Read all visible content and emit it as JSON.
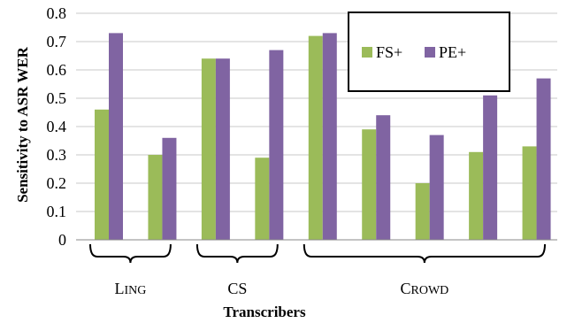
{
  "chart_data": {
    "type": "bar",
    "title": "",
    "xlabel": "Transcribers",
    "ylabel": "Sensitivity to ASR WER",
    "ylim": [
      0,
      0.8
    ],
    "yticks": [
      "0",
      "0.1",
      "0.2",
      "0.3",
      "0.4",
      "0.5",
      "0.6",
      "0.7",
      "0.8"
    ],
    "grid": true,
    "legend_position": "top-right",
    "series": [
      {
        "name": "FS+",
        "color": "#9bbb59",
        "values": [
          0.46,
          0.3,
          0.64,
          0.29,
          0.72,
          0.39,
          0.2,
          0.31,
          0.33
        ]
      },
      {
        "name": "PE+",
        "color": "#8064a2",
        "values": [
          0.73,
          0.36,
          0.64,
          0.67,
          0.73,
          0.44,
          0.37,
          0.51,
          0.57
        ]
      }
    ],
    "groups": [
      {
        "label_first": "L",
        "label_rest": "ING",
        "count": 2
      },
      {
        "label_first": "CS",
        "label_rest": "",
        "count": 2
      },
      {
        "label_first": "C",
        "label_rest": "ROWD",
        "count": 5
      }
    ]
  }
}
